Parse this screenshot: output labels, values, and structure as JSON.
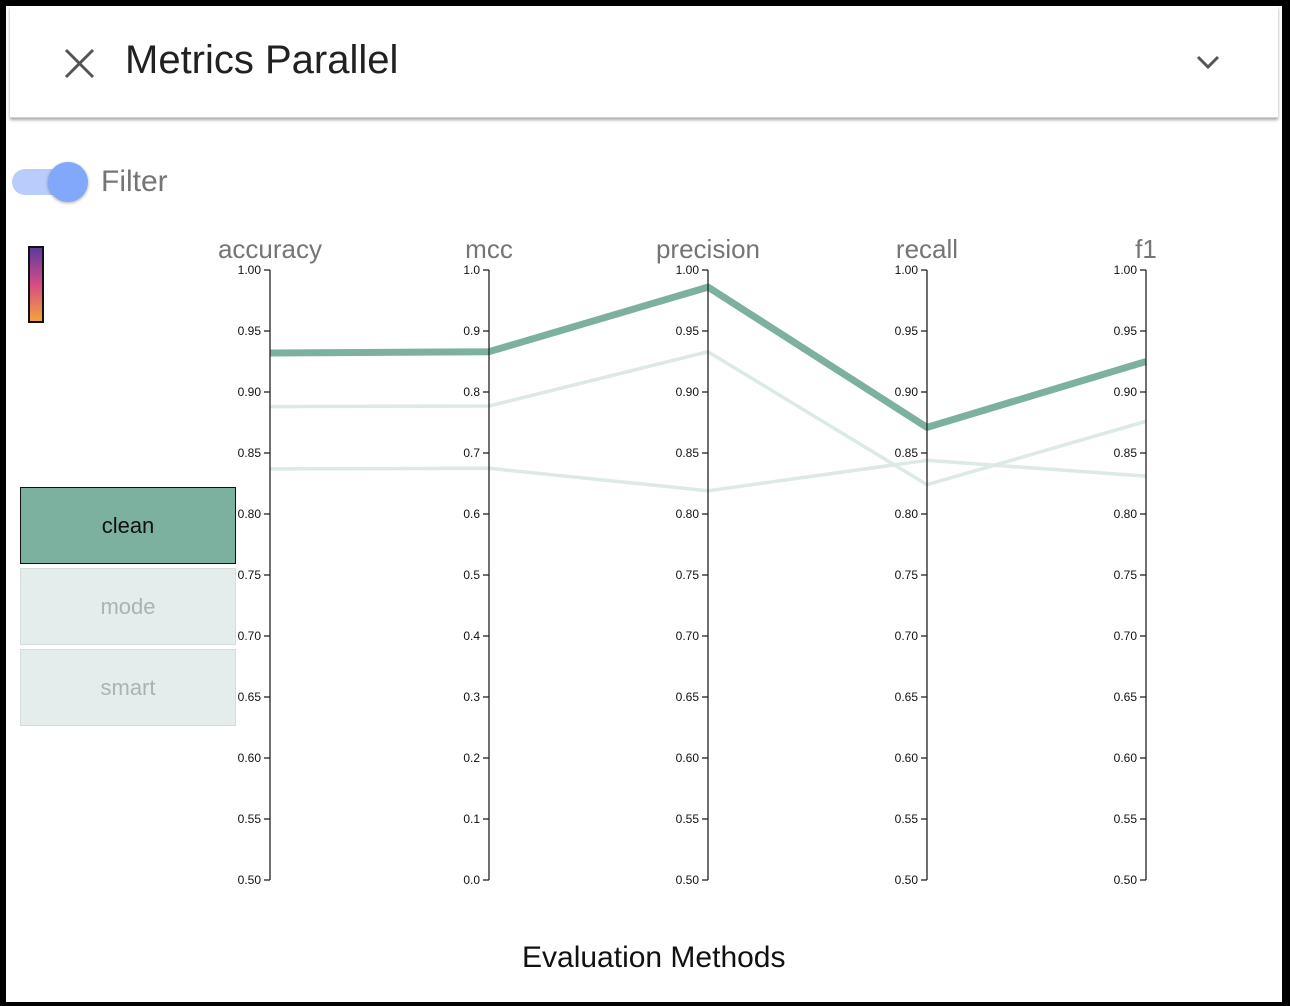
{
  "header": {
    "title": "Metrics Parallel"
  },
  "filter": {
    "label": "Filter",
    "enabled": true
  },
  "legend": {
    "items": [
      {
        "label": "clean",
        "active": true
      },
      {
        "label": "mode",
        "active": false
      },
      {
        "label": "smart",
        "active": false
      }
    ]
  },
  "colors": {
    "active_line": "#7cb1a0",
    "faded_line": "#dce9e5",
    "toggle_knob": "#82a8fb",
    "toggle_track": "#b9ccfb"
  },
  "chart_data": {
    "type": "parallel-coordinates",
    "xlabel": "Evaluation Methods",
    "axes": [
      {
        "name": "accuracy",
        "range": [
          0.5,
          1.0
        ],
        "ticks": [
          "0.50",
          "0.55",
          "0.60",
          "0.65",
          "0.70",
          "0.75",
          "0.80",
          "0.85",
          "0.90",
          "0.95",
          "1.00"
        ]
      },
      {
        "name": "mcc",
        "range": [
          0.0,
          1.0
        ],
        "ticks": [
          "0.0",
          "0.1",
          "0.2",
          "0.3",
          "0.4",
          "0.5",
          "0.6",
          "0.7",
          "0.8",
          "0.9",
          "1.0"
        ]
      },
      {
        "name": "precision",
        "range": [
          0.5,
          1.0
        ],
        "ticks": [
          "0.50",
          "0.55",
          "0.60",
          "0.65",
          "0.70",
          "0.75",
          "0.80",
          "0.85",
          "0.90",
          "0.95",
          "1.00"
        ]
      },
      {
        "name": "recall",
        "range": [
          0.5,
          1.0
        ],
        "ticks": [
          "0.50",
          "0.55",
          "0.60",
          "0.65",
          "0.70",
          "0.75",
          "0.80",
          "0.85",
          "0.90",
          "0.95",
          "1.00"
        ]
      },
      {
        "name": "f1",
        "range": [
          0.5,
          1.0
        ],
        "ticks": [
          "0.50",
          "0.55",
          "0.60",
          "0.65",
          "0.70",
          "0.75",
          "0.80",
          "0.85",
          "0.90",
          "0.95",
          "1.00"
        ]
      }
    ],
    "series": [
      {
        "name": "clean",
        "highlighted": true,
        "values": [
          0.932,
          0.866,
          0.986,
          0.871,
          0.925
        ]
      },
      {
        "name": "mode",
        "highlighted": false,
        "values": [
          0.888,
          0.777,
          0.933,
          0.824,
          0.876
        ]
      },
      {
        "name": "smart",
        "highlighted": false,
        "values": [
          0.837,
          0.675,
          0.819,
          0.844,
          0.831
        ]
      }
    ]
  }
}
